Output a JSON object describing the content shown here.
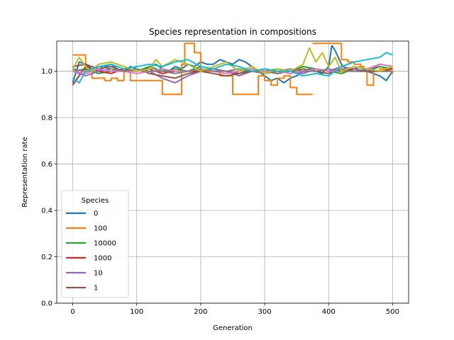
{
  "chart_data": {
    "type": "line",
    "title": "Species representation in compositions",
    "xlabel": "Generation",
    "ylabel": "Representation rate",
    "xlim": [
      -25,
      525
    ],
    "ylim": [
      0,
      1.13
    ],
    "xticks": [
      0,
      100,
      200,
      300,
      400,
      500
    ],
    "xtick_labels": [
      "0",
      "100",
      "200",
      "300",
      "400",
      "500"
    ],
    "yticks": [
      0.0,
      0.2,
      0.4,
      0.6,
      0.8,
      1.0
    ],
    "ytick_labels": [
      "0.0",
      "0.2",
      "0.4",
      "0.6",
      "0.8",
      "1.0"
    ],
    "grid": true,
    "legend": {
      "title": "Species",
      "placement": "lower-left"
    },
    "series": [
      {
        "name": "0",
        "color": "#1f77b4",
        "step": false,
        "x": [
          0,
          10,
          20,
          30,
          40,
          50,
          60,
          70,
          80,
          90,
          100,
          110,
          120,
          130,
          140,
          150,
          160,
          170,
          180,
          190,
          200,
          210,
          220,
          230,
          240,
          250,
          260,
          270,
          280,
          290,
          300,
          310,
          320,
          330,
          340,
          350,
          360,
          370,
          380,
          390,
          400,
          405,
          410,
          420,
          430,
          440,
          450,
          460,
          470,
          480,
          490,
          500
        ],
        "y": [
          0.95,
          1.04,
          1.03,
          1.01,
          1.0,
          1.02,
          1.03,
          1.01,
          1.0,
          1.02,
          1.01,
          1.0,
          1.02,
          1.03,
          1.01,
          1.0,
          1.02,
          1.01,
          1.03,
          1.02,
          1.04,
          1.03,
          1.03,
          1.05,
          1.04,
          1.03,
          1.05,
          1.04,
          1.02,
          1.0,
          0.98,
          0.96,
          0.97,
          0.95,
          0.97,
          0.98,
          1.0,
          1.01,
          1.0,
          0.99,
          1.02,
          1.11,
          1.09,
          1.03,
          1.0,
          1.01,
          1.02,
          1.0,
          0.99,
          0.98,
          0.96,
          1.0
        ]
      },
      {
        "name": "100",
        "color": "#ff7f0e",
        "step": true,
        "x": [
          0,
          20,
          30,
          50,
          60,
          70,
          80,
          90,
          100,
          110,
          120,
          140,
          150,
          160,
          170,
          175,
          190,
          200,
          210,
          220,
          230,
          240,
          250,
          270,
          290,
          300,
          310,
          320,
          330,
          340,
          350,
          360,
          375
        ],
        "y": [
          1.07,
          1.0,
          0.97,
          0.96,
          0.97,
          0.96,
          1.0,
          0.96,
          0.96,
          0.96,
          0.96,
          0.9,
          0.9,
          0.9,
          1.03,
          1.12,
          1.08,
          1.0,
          1.0,
          1.0,
          0.98,
          0.98,
          0.9,
          0.9,
          0.98,
          0.96,
          0.94,
          0.97,
          0.98,
          0.93,
          0.9,
          0.9,
          0.9
        ]
      },
      {
        "name": "100",
        "color": "#ff7f0e",
        "step": true,
        "x": [
          375,
          420,
          430,
          440,
          450,
          455,
          460,
          470,
          480,
          490,
          500
        ],
        "y": [
          1.12,
          1.05,
          1.04,
          1.03,
          1.02,
          1.0,
          0.94,
          1.0,
          1.01,
          1.0,
          0.99
        ]
      },
      {
        "name": "10000",
        "color": "#2ca02c",
        "step": false,
        "x": [
          0,
          20,
          40,
          60,
          80,
          100,
          120,
          140,
          160,
          180,
          200,
          220,
          240,
          260,
          280,
          300,
          320,
          340,
          360,
          380,
          400,
          420,
          440,
          460,
          480,
          500
        ],
        "y": [
          1.0,
          1.01,
          0.99,
          1.0,
          1.01,
          1.0,
          1.02,
          1.0,
          1.01,
          1.0,
          1.02,
          1.01,
          1.0,
          0.99,
          1.01,
          1.0,
          1.01,
          1.0,
          1.02,
          1.01,
          1.0,
          0.99,
          1.01,
          1.0,
          1.02,
          1.01
        ]
      },
      {
        "name": "1000",
        "color": "#d62728",
        "step": false,
        "x": [
          0,
          20,
          40,
          60,
          80,
          100,
          120,
          140,
          160,
          180,
          200,
          220,
          240,
          260,
          280,
          300,
          320,
          340,
          360,
          380,
          400,
          420,
          440,
          460,
          480,
          500
        ],
        "y": [
          0.94,
          1.02,
          1.0,
          0.99,
          1.01,
          1.0,
          1.01,
          0.99,
          1.0,
          1.0,
          1.0,
          1.01,
          1.0,
          0.99,
          1.0,
          1.01,
          1.0,
          1.0,
          0.99,
          1.01,
          1.0,
          1.0,
          1.01,
          1.0,
          1.0,
          1.01
        ]
      },
      {
        "name": "10",
        "color": "#9467bd",
        "step": false,
        "x": [
          0,
          20,
          40,
          60,
          80,
          100,
          120,
          140,
          160,
          180,
          200,
          220,
          240,
          260,
          280,
          300,
          320,
          340,
          360,
          380,
          400,
          420,
          440,
          460,
          480,
          500
        ],
        "y": [
          1.0,
          0.98,
          1.0,
          1.01,
          1.0,
          0.99,
          1.0,
          0.97,
          0.95,
          0.98,
          1.0,
          1.01,
          1.0,
          0.98,
          1.0,
          1.01,
          1.0,
          1.0,
          0.99,
          1.01,
          1.0,
          1.02,
          1.01,
          1.0,
          1.03,
          1.02
        ]
      },
      {
        "name": "1",
        "color": "#8c564b",
        "step": false,
        "x": [
          0,
          20,
          40,
          60,
          80,
          100,
          120,
          140,
          160,
          180,
          200,
          220,
          240,
          260,
          280,
          300,
          320,
          340,
          360,
          380,
          400,
          420,
          440,
          460,
          480,
          500
        ],
        "y": [
          1.02,
          1.03,
          1.01,
          1.02,
          1.0,
          1.01,
          0.99,
          0.98,
          0.97,
          0.99,
          1.0,
          0.99,
          0.98,
          0.99,
          1.0,
          1.0,
          0.99,
          1.0,
          1.01,
          1.0,
          0.99,
          1.01,
          1.0,
          1.0,
          1.0,
          1.0
        ]
      },
      {
        "name": "",
        "color": "#e377c2",
        "step": false,
        "x": [
          0,
          20,
          40,
          60,
          80,
          100,
          120,
          140,
          160,
          180,
          200,
          220,
          240,
          260,
          280,
          300,
          320,
          340,
          360,
          380,
          400,
          420,
          440,
          460,
          480,
          500
        ],
        "y": [
          1.0,
          0.99,
          1.01,
          1.0,
          1.0,
          0.99,
          1.0,
          1.01,
          1.0,
          1.0,
          1.01,
          1.0,
          0.99,
          1.0,
          1.01,
          1.0,
          1.0,
          0.99,
          1.0,
          1.01,
          1.0,
          1.0,
          1.02,
          1.01,
          1.03,
          1.02
        ]
      },
      {
        "name": "",
        "color": "#7f7f7f",
        "step": false,
        "x": [
          0,
          20,
          40,
          60,
          80,
          100,
          120,
          140,
          160,
          180,
          200,
          220,
          240,
          260,
          280,
          300,
          320,
          340,
          360,
          380,
          400,
          420,
          440,
          460,
          480,
          500
        ],
        "y": [
          1.01,
          1.0,
          1.02,
          1.01,
          1.0,
          1.01,
          1.0,
          1.0,
          0.99,
          1.0,
          1.01,
          1.0,
          1.0,
          1.01,
          1.0,
          0.99,
          1.0,
          1.01,
          1.0,
          1.0,
          1.01,
          1.0,
          1.0,
          1.01,
          1.0,
          1.0
        ]
      },
      {
        "name": "",
        "color": "#bcbd22",
        "step": false,
        "x": [
          0,
          10,
          20,
          30,
          40,
          60,
          80,
          100,
          120,
          130,
          140,
          160,
          180,
          200,
          220,
          240,
          260,
          280,
          300,
          320,
          340,
          360,
          370,
          380,
          390,
          400,
          410,
          420,
          440,
          460,
          480,
          500
        ],
        "y": [
          1.01,
          1.06,
          1.02,
          1.0,
          1.03,
          1.04,
          1.02,
          1.0,
          1.01,
          1.05,
          1.02,
          1.05,
          1.03,
          1.0,
          1.02,
          1.04,
          1.0,
          1.02,
          0.99,
          1.01,
          1.0,
          1.03,
          1.1,
          1.04,
          1.08,
          1.02,
          1.06,
          1.0,
          1.02,
          1.01,
          1.0,
          1.02
        ]
      },
      {
        "name": "",
        "color": "#17becf",
        "step": false,
        "x": [
          0,
          10,
          20,
          40,
          60,
          80,
          100,
          120,
          140,
          160,
          180,
          200,
          220,
          240,
          260,
          280,
          300,
          320,
          340,
          360,
          380,
          400,
          420,
          440,
          460,
          480,
          490,
          500
        ],
        "y": [
          0.97,
          0.95,
          1.0,
          1.02,
          1.03,
          1.01,
          1.02,
          1.03,
          1.02,
          1.04,
          1.05,
          1.02,
          1.01,
          1.03,
          1.02,
          1.0,
          1.01,
          1.0,
          1.0,
          0.98,
          0.99,
          0.98,
          1.02,
          1.04,
          1.05,
          1.06,
          1.08,
          1.07
        ]
      }
    ]
  }
}
